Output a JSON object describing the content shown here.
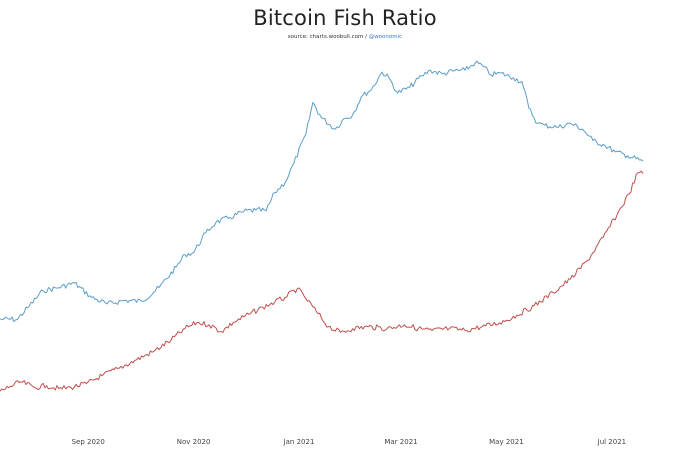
{
  "chart_data": {
    "type": "line",
    "title": "Bitcoin Fish Ratio",
    "subtitle": {
      "prefix": "source: charts.woobull.com / ",
      "handle": "@woonomic"
    },
    "xlabel": "",
    "ylabel": "",
    "grid": false,
    "x_range": [
      "2020-07-12",
      "2021-07-19"
    ],
    "x_ticks": [
      {
        "date": "2020-09-01",
        "label": "Sep 2020"
      },
      {
        "date": "2020-11-01",
        "label": "Nov 2020"
      },
      {
        "date": "2021-01-01",
        "label": "Jan 2021"
      },
      {
        "date": "2021-03-01",
        "label": "Mar 2021"
      },
      {
        "date": "2021-05-01",
        "label": "May 2021"
      },
      {
        "date": "2021-07-01",
        "label": "Jul 2021"
      }
    ],
    "y_range": [
      0,
      100
    ],
    "series": [
      {
        "color": "#5b9ec9",
        "points": [
          [
            "2020-07-12",
            30.5
          ],
          [
            "2020-07-22",
            30.4
          ],
          [
            "2020-07-28",
            33.5
          ],
          [
            "2020-08-06",
            38.0
          ],
          [
            "2020-08-15",
            38.8
          ],
          [
            "2020-08-24",
            40.0
          ],
          [
            "2020-09-03",
            36.2
          ],
          [
            "2020-09-12",
            34.5
          ],
          [
            "2020-09-22",
            35.4
          ],
          [
            "2020-10-02",
            35.2
          ],
          [
            "2020-10-12",
            38.8
          ],
          [
            "2020-10-22",
            44.2
          ],
          [
            "2020-10-27",
            47.5
          ],
          [
            "2020-11-01",
            48.0
          ],
          [
            "2020-11-08",
            53.2
          ],
          [
            "2020-11-14",
            56.0
          ],
          [
            "2020-11-22",
            57.2
          ],
          [
            "2020-11-30",
            58.8
          ],
          [
            "2020-12-07",
            59.2
          ],
          [
            "2020-12-13",
            59.0
          ],
          [
            "2020-12-18",
            63.8
          ],
          [
            "2020-12-24",
            66.5
          ],
          [
            "2020-12-29",
            71.5
          ],
          [
            "2021-01-05",
            79.2
          ],
          [
            "2021-01-09",
            87.5
          ],
          [
            "2021-01-14",
            83.5
          ],
          [
            "2021-01-22",
            80.5
          ],
          [
            "2021-01-27",
            83.2
          ],
          [
            "2021-02-01",
            84.2
          ],
          [
            "2021-02-06",
            89.0
          ],
          [
            "2021-02-12",
            91.0
          ],
          [
            "2021-02-18",
            95.5
          ],
          [
            "2021-02-22",
            94.0
          ],
          [
            "2021-02-27",
            90.0
          ],
          [
            "2021-03-06",
            91.5
          ],
          [
            "2021-03-13",
            94.5
          ],
          [
            "2021-03-18",
            96.0
          ],
          [
            "2021-03-25",
            95.0
          ],
          [
            "2021-03-31",
            95.8
          ],
          [
            "2021-04-07",
            96.0
          ],
          [
            "2021-04-13",
            98.0
          ],
          [
            "2021-04-17",
            97.2
          ],
          [
            "2021-04-22",
            94.8
          ],
          [
            "2021-04-28",
            95.2
          ],
          [
            "2021-05-05",
            94.0
          ],
          [
            "2021-05-10",
            93.0
          ],
          [
            "2021-05-14",
            86.0
          ],
          [
            "2021-05-19",
            82.0
          ],
          [
            "2021-05-23",
            81.5
          ],
          [
            "2021-05-31",
            81.0
          ],
          [
            "2021-06-07",
            82.0
          ],
          [
            "2021-06-14",
            80.5
          ],
          [
            "2021-06-20",
            77.5
          ],
          [
            "2021-06-27",
            76.2
          ],
          [
            "2021-07-03",
            74.5
          ],
          [
            "2021-07-10",
            73.5
          ],
          [
            "2021-07-19",
            72.0
          ]
        ]
      },
      {
        "color": "#c0504d",
        "points": [
          [
            "2020-07-12",
            11.5
          ],
          [
            "2020-07-18",
            12.8
          ],
          [
            "2020-07-24",
            14.0
          ],
          [
            "2020-08-01",
            12.5
          ],
          [
            "2020-08-08",
            13.0
          ],
          [
            "2020-08-15",
            12.2
          ],
          [
            "2020-08-22",
            12.5
          ],
          [
            "2020-08-31",
            13.5
          ],
          [
            "2020-09-09",
            15.6
          ],
          [
            "2020-09-19",
            17.6
          ],
          [
            "2020-09-29",
            19.8
          ],
          [
            "2020-10-09",
            22.0
          ],
          [
            "2020-10-19",
            25.0
          ],
          [
            "2020-10-27",
            28.0
          ],
          [
            "2020-11-03",
            29.6
          ],
          [
            "2020-11-10",
            29.0
          ],
          [
            "2020-11-17",
            27.2
          ],
          [
            "2020-11-24",
            29.6
          ],
          [
            "2020-12-04",
            32.0
          ],
          [
            "2020-12-11",
            33.6
          ],
          [
            "2020-12-18",
            35.0
          ],
          [
            "2020-12-24",
            36.2
          ],
          [
            "2020-12-31",
            38.5
          ],
          [
            "2021-01-04",
            36.5
          ],
          [
            "2021-01-11",
            32.5
          ],
          [
            "2021-01-18",
            28.5
          ],
          [
            "2021-01-25",
            27.0
          ],
          [
            "2021-02-01",
            28.0
          ],
          [
            "2021-02-10",
            28.5
          ],
          [
            "2021-02-21",
            28.0
          ],
          [
            "2021-03-03",
            29.0
          ],
          [
            "2021-03-11",
            28.0
          ],
          [
            "2021-03-19",
            27.5
          ],
          [
            "2021-03-29",
            28.0
          ],
          [
            "2021-04-07",
            27.5
          ],
          [
            "2021-04-17",
            28.5
          ],
          [
            "2021-04-27",
            29.5
          ],
          [
            "2021-05-07",
            31.5
          ],
          [
            "2021-05-17",
            34.0
          ],
          [
            "2021-05-28",
            37.5
          ],
          [
            "2021-06-07",
            41.0
          ],
          [
            "2021-06-17",
            46.0
          ],
          [
            "2021-06-26",
            52.0
          ],
          [
            "2021-07-04",
            58.0
          ],
          [
            "2021-07-11",
            63.5
          ],
          [
            "2021-07-16",
            69.0
          ],
          [
            "2021-07-19",
            68.8
          ]
        ]
      }
    ]
  }
}
